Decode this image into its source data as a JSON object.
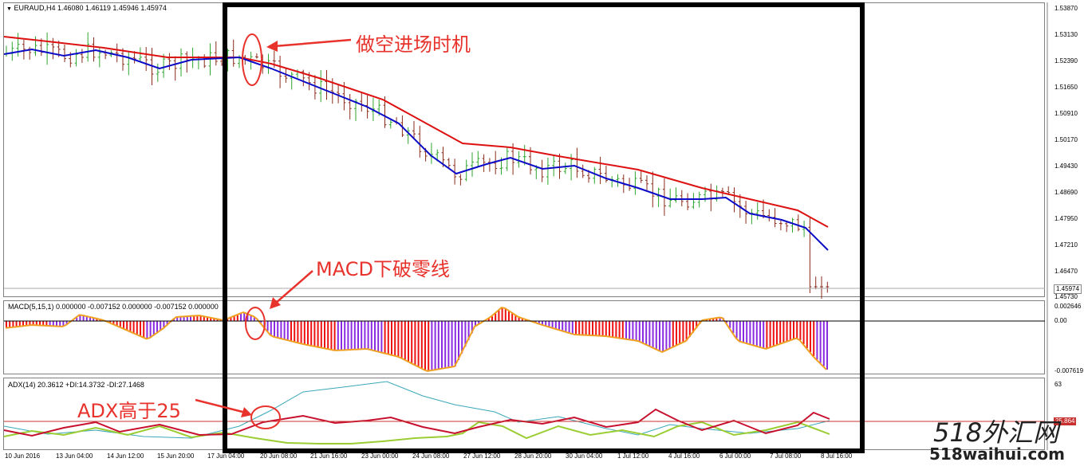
{
  "window": {
    "symbol_header": "EURAUD,H4  1.46080 1.46119 1.45946 1.45974",
    "dropdown_icon": "triangle-down-icon"
  },
  "price_axis": {
    "labels": [
      "1.53870",
      "1.53130",
      "1.52390",
      "1.51650",
      "1.50910",
      "1.50170",
      "1.49430",
      "1.48690",
      "1.47950",
      "1.47210",
      "1.46470",
      "1.45730"
    ],
    "current_price": "1.45974"
  },
  "macd": {
    "header": "MACD(5,15,1) 0.000000 -0.007152 0.000000 -0.007152 0.000000",
    "axis_labels": [
      "0.002646",
      "0.00",
      "-0.007619"
    ]
  },
  "adx": {
    "header": "ADX(14) 20.3612 +DI:14.3732 -DI:27.1468",
    "axis_labels": [
      "63"
    ],
    "level_badge": "25.864"
  },
  "time_axis": {
    "labels": [
      "10 Jun 2016",
      "13 Jun 04:00",
      "14 Jun 12:00",
      "15 Jun 20:00",
      "17 Jun 04:00",
      "20 Jun 08:00",
      "21 Jun 16:00",
      "23 Jun 00:00",
      "24 Jun 08:00",
      "27 Jun 12:00",
      "28 Jun 20:00",
      "30 Jun 04:00",
      "1 Jul 12:00",
      "4 Jul 16:00",
      "6 Jul 00:00",
      "7 Jul 08:00",
      "8 Jul 16:00"
    ]
  },
  "annotations": {
    "entry": "做空进场时机",
    "macd_cross": "MACD下破零线",
    "adx_above": "ADX高于25"
  },
  "watermark": {
    "line1": "518外汇网",
    "line2": "518waihui.com"
  },
  "colors": {
    "bull_candle": "#2ea52e",
    "bear_candle": "#8b2a1a",
    "ma_fast": "#0a0ac8",
    "ma_slow": "#dd1111",
    "macd_bar_red": "#ee1111",
    "macd_bar_purple": "#8a2be2",
    "macd_signal": "#f0a020",
    "adx_line": "#3aa7b8",
    "plus_di": "#9acd32",
    "minus_di": "#c8102e",
    "level_line": "#c83030",
    "annotation": "#e8322c"
  }
}
